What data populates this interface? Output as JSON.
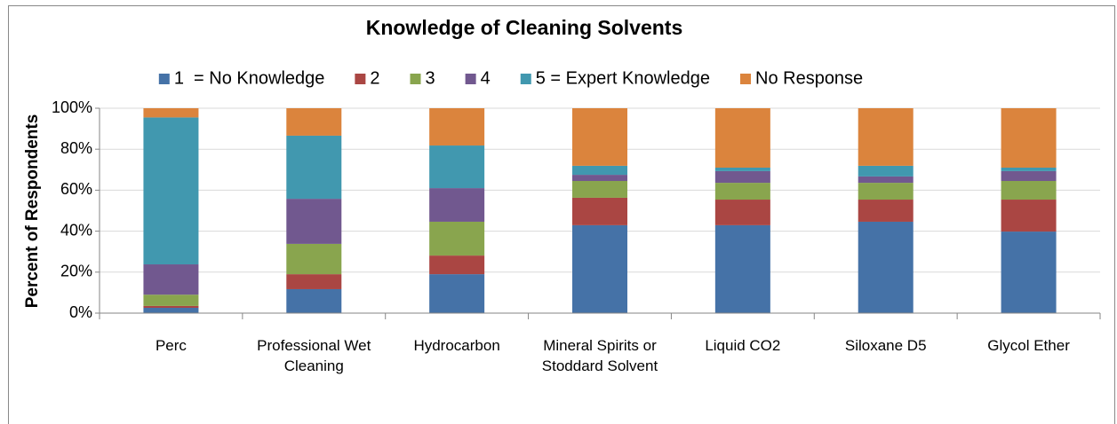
{
  "chart_data": {
    "type": "stacked_bar",
    "title": "Knowledge of Cleaning Solvents",
    "y_label": "Percent of Respondents",
    "categories": [
      "Perc",
      "Professional Wet Cleaning",
      "Hydrocarbon",
      "Mineral Spirits or Stoddard Solvent",
      "Liquid CO2",
      "Siloxane D5",
      "Glycol Ether"
    ],
    "series": [
      {
        "name": "1  = No Knowledge",
        "color": "#4572a7",
        "values": [
          2.6,
          11.7,
          19,
          42.9,
          42.9,
          44.6,
          39.8
        ]
      },
      {
        "name": "2",
        "color": "#aa4643",
        "values": [
          0.9,
          7.3,
          9.1,
          13.4,
          12.5,
          10.8,
          15.6
        ]
      },
      {
        "name": "3",
        "color": "#89a54e",
        "values": [
          5.5,
          14.8,
          16.5,
          8.2,
          8.2,
          8.2,
          9.1
        ]
      },
      {
        "name": "4",
        "color": "#71588f",
        "values": [
          14.8,
          22,
          16.4,
          3,
          5.7,
          3.1,
          4.8
        ]
      },
      {
        "name": "5 = Expert Knowledge",
        "color": "#4198af",
        "values": [
          71.7,
          30.8,
          20.8,
          4.4,
          1.7,
          5.2,
          1.7
        ]
      },
      {
        "name": "No Response",
        "color": "#db843d",
        "values": [
          4.5,
          13.4,
          18.2,
          28.1,
          29,
          28.1,
          29
        ]
      }
    ],
    "ylim": [
      0,
      100
    ],
    "yticks": [
      {
        "value": 0,
        "label": "0%"
      },
      {
        "value": 20,
        "label": "20%"
      },
      {
        "value": 40,
        "label": "40%"
      },
      {
        "value": 60,
        "label": "60%"
      },
      {
        "value": 80,
        "label": "80%"
      },
      {
        "value": 100,
        "label": "100%"
      }
    ],
    "grid": true,
    "legend": "top"
  }
}
